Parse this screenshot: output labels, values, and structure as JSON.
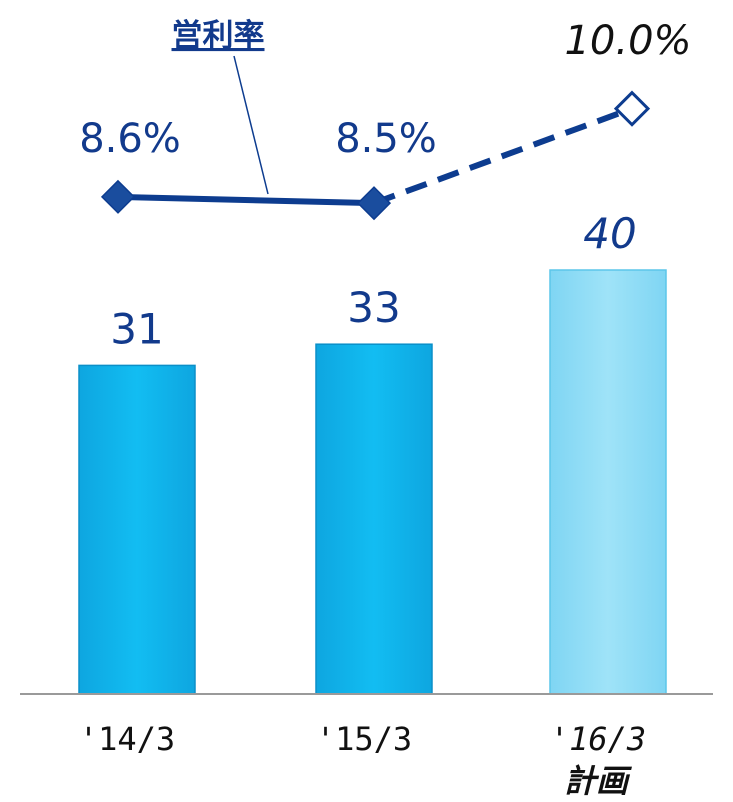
{
  "chart_data": {
    "type": "bar",
    "categories": [
      "'14/3",
      "'15/3",
      "'16/3"
    ],
    "category_sublabels": [
      "",
      "",
      "計画"
    ],
    "values": [
      31,
      33,
      40
    ],
    "value_labels": [
      "31",
      "33",
      "40"
    ],
    "plan_flags": [
      false,
      false,
      true
    ],
    "ylim": [
      0,
      50
    ],
    "line_series": {
      "name": "営利率",
      "values": [
        8.6,
        8.5,
        10.0
      ],
      "labels": [
        "8.6%",
        "8.5%",
        "10.0%"
      ],
      "plan_flags": [
        false,
        false,
        true
      ]
    },
    "colors": {
      "bar": "#12b6ee",
      "bar_plan": "#8fdcf5",
      "bar_edge": "#0b8fc8",
      "line": "#0d3c8f",
      "label": "#123a8c",
      "axis": "#9a9a9a"
    },
    "grid": false,
    "legend": "none"
  }
}
